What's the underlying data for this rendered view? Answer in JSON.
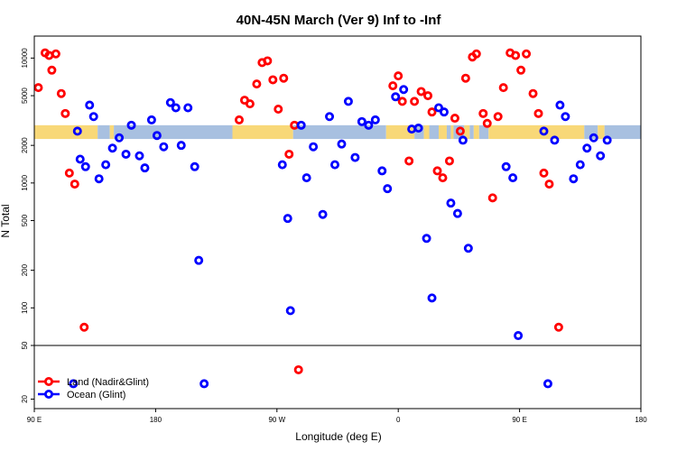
{
  "chart_data": {
    "type": "scatter",
    "title": "40N-45N March (Ver 9)   Inf to -Inf",
    "xlabel": "Longitude (deg E)",
    "ylabel": "N Total",
    "x_ticks": [
      {
        "value": 90,
        "label": "90 E"
      },
      {
        "value": 180,
        "label": "180"
      },
      {
        "value": 270,
        "label": "90 W"
      },
      {
        "value": 360,
        "label": "0"
      },
      {
        "value": 450,
        "label": "90 E"
      },
      {
        "value": 540,
        "label": "180"
      }
    ],
    "y_ticks_main": [
      100,
      200,
      500,
      1000,
      2000,
      5000,
      10000
    ],
    "y_ticks_lower": [
      20,
      50
    ],
    "xlim": [
      90,
      540
    ],
    "ylim_main": [
      50,
      15000
    ],
    "ylim_lower": [
      17,
      50
    ],
    "log_y": true,
    "legend_position": "bottom-left",
    "band": {
      "y_low": 2250,
      "y_high": 2900,
      "land_color": "#F8D878",
      "ocean_color": "#A8C0E0",
      "segments": [
        {
          "from": 90,
          "to": 137,
          "kind": "land"
        },
        {
          "from": 137,
          "to": 146,
          "kind": "ocean"
        },
        {
          "from": 146,
          "to": 149,
          "kind": "land"
        },
        {
          "from": 149,
          "to": 237,
          "kind": "ocean"
        },
        {
          "from": 237,
          "to": 282,
          "kind": "land"
        },
        {
          "from": 282,
          "to": 351,
          "kind": "ocean"
        },
        {
          "from": 351,
          "to": 372,
          "kind": "land"
        },
        {
          "from": 372,
          "to": 379,
          "kind": "ocean"
        },
        {
          "from": 379,
          "to": 383,
          "kind": "land"
        },
        {
          "from": 383,
          "to": 390,
          "kind": "ocean"
        },
        {
          "from": 390,
          "to": 396,
          "kind": "land"
        },
        {
          "from": 396,
          "to": 399,
          "kind": "ocean"
        },
        {
          "from": 399,
          "to": 401,
          "kind": "land"
        },
        {
          "from": 401,
          "to": 409,
          "kind": "ocean"
        },
        {
          "from": 409,
          "to": 413,
          "kind": "land"
        },
        {
          "from": 413,
          "to": 416,
          "kind": "ocean"
        },
        {
          "from": 416,
          "to": 420,
          "kind": "land"
        },
        {
          "from": 420,
          "to": 427,
          "kind": "ocean"
        },
        {
          "from": 427,
          "to": 498,
          "kind": "land"
        },
        {
          "from": 498,
          "to": 508,
          "kind": "ocean"
        },
        {
          "from": 508,
          "to": 513,
          "kind": "land"
        },
        {
          "from": 513,
          "to": 540,
          "kind": "ocean"
        }
      ]
    },
    "series": [
      {
        "name": "Land (Nadir&Glint)",
        "color": "#FF0000",
        "points": [
          [
            93,
            5800
          ],
          [
            98,
            11000
          ],
          [
            101,
            10500
          ],
          [
            103,
            8000
          ],
          [
            106,
            10800
          ],
          [
            110,
            5200
          ],
          [
            113,
            3600
          ],
          [
            116,
            1200
          ],
          [
            120,
            980
          ],
          [
            127,
            70
          ],
          [
            242,
            3200
          ],
          [
            246,
            4600
          ],
          [
            250,
            4300
          ],
          [
            255,
            6200
          ],
          [
            259,
            9200
          ],
          [
            263,
            9500
          ],
          [
            267,
            6700
          ],
          [
            271,
            3900
          ],
          [
            275,
            6900
          ],
          [
            279,
            1700
          ],
          [
            283,
            2900
          ],
          [
            286,
            33
          ],
          [
            356,
            6000
          ],
          [
            360,
            7200
          ],
          [
            363,
            4500
          ],
          [
            368,
            1500
          ],
          [
            372,
            4500
          ],
          [
            377,
            5400
          ],
          [
            382,
            5000
          ],
          [
            385,
            3700
          ],
          [
            389,
            1250
          ],
          [
            393,
            1100
          ],
          [
            398,
            1500
          ],
          [
            402,
            3300
          ],
          [
            406,
            2600
          ],
          [
            410,
            6900
          ],
          [
            415,
            10200
          ],
          [
            418,
            10800
          ],
          [
            423,
            3600
          ],
          [
            426,
            3000
          ],
          [
            430,
            760
          ],
          [
            434,
            3400
          ],
          [
            438,
            5800
          ],
          [
            443,
            11000
          ],
          [
            447,
            10500
          ],
          [
            451,
            8000
          ],
          [
            455,
            10800
          ],
          [
            460,
            5200
          ],
          [
            464,
            3600
          ],
          [
            468,
            1200
          ],
          [
            472,
            980
          ],
          [
            479,
            70
          ]
        ]
      },
      {
        "name": "Ocean (Glint)",
        "color": "#0000FF",
        "points": [
          [
            119,
            26
          ],
          [
            122,
            2600
          ],
          [
            124,
            1550
          ],
          [
            128,
            1350
          ],
          [
            131,
            4200
          ],
          [
            134,
            3400
          ],
          [
            138,
            1080
          ],
          [
            143,
            1400
          ],
          [
            148,
            1900
          ],
          [
            153,
            2300
          ],
          [
            158,
            1700
          ],
          [
            162,
            2900
          ],
          [
            168,
            1650
          ],
          [
            172,
            1320
          ],
          [
            177,
            3200
          ],
          [
            181,
            2400
          ],
          [
            186,
            1950
          ],
          [
            191,
            4400
          ],
          [
            195,
            4000
          ],
          [
            199,
            2000
          ],
          [
            204,
            4000
          ],
          [
            209,
            1350
          ],
          [
            212,
            240
          ],
          [
            216,
            26
          ],
          [
            274,
            1400
          ],
          [
            278,
            520
          ],
          [
            280,
            95
          ],
          [
            288,
            2900
          ],
          [
            292,
            1100
          ],
          [
            297,
            1950
          ],
          [
            304,
            560
          ],
          [
            309,
            3400
          ],
          [
            313,
            1400
          ],
          [
            318,
            2050
          ],
          [
            323,
            4500
          ],
          [
            328,
            1600
          ],
          [
            333,
            3100
          ],
          [
            338,
            2900
          ],
          [
            343,
            3200
          ],
          [
            348,
            1250
          ],
          [
            352,
            900
          ],
          [
            358,
            4900
          ],
          [
            364,
            5600
          ],
          [
            370,
            2700
          ],
          [
            375,
            2750
          ],
          [
            381,
            360
          ],
          [
            385,
            120
          ],
          [
            390,
            4000
          ],
          [
            394,
            3700
          ],
          [
            399,
            690
          ],
          [
            404,
            570
          ],
          [
            408,
            2200
          ],
          [
            412,
            300
          ],
          [
            440,
            1350
          ],
          [
            445,
            1100
          ],
          [
            449,
            60
          ],
          [
            468,
            2600
          ],
          [
            471,
            26
          ],
          [
            476,
            2200
          ],
          [
            480,
            4200
          ],
          [
            484,
            3400
          ],
          [
            490,
            1080
          ],
          [
            495,
            1400
          ],
          [
            500,
            1900
          ],
          [
            505,
            2300
          ],
          [
            510,
            1650
          ],
          [
            515,
            2200
          ]
        ]
      }
    ]
  }
}
